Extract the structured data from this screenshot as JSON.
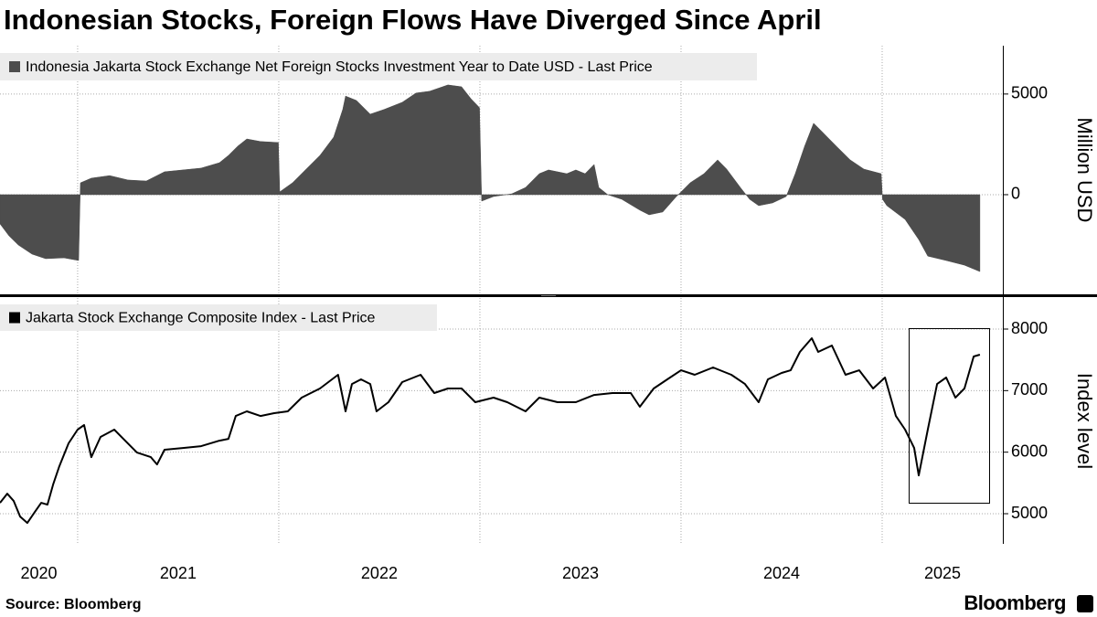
{
  "title": "Indonesian Stocks, Foreign Flows Have Diverged Since April",
  "source": "Source: Bloomberg",
  "brand": "Bloomberg",
  "chart_data": [
    {
      "type": "area",
      "ylabel": "Million USD",
      "xlim": [
        2020.614,
        2025.6
      ],
      "ylim": [
        -4950,
        7400
      ],
      "yticks": [
        0,
        5000
      ],
      "grid": true,
      "x": [
        2020.614,
        2020.659,
        2020.705,
        2020.773,
        2020.841,
        2020.932,
        2021.005,
        2021.014,
        2021.068,
        2021.159,
        2021.25,
        2021.341,
        2021.432,
        2021.523,
        2021.614,
        2021.705,
        2021.75,
        2021.795,
        2021.841,
        2021.909,
        2021.998,
        2022.005,
        2022.068,
        2022.136,
        2022.205,
        2022.273,
        2022.318,
        2022.332,
        2022.386,
        2022.455,
        2022.523,
        2022.614,
        2022.682,
        2022.75,
        2022.841,
        2022.909,
        2022.955,
        2022.998,
        2023.009,
        2023.068,
        2023.159,
        2023.227,
        2023.295,
        2023.341,
        2023.432,
        2023.477,
        2023.523,
        2023.568,
        2023.591,
        2023.636,
        2023.705,
        2023.795,
        2023.841,
        2023.909,
        2023.977,
        2024.045,
        2024.114,
        2024.182,
        2024.227,
        2024.295,
        2024.341,
        2024.386,
        2024.455,
        2024.523,
        2024.568,
        2024.614,
        2024.659,
        2024.705,
        2024.773,
        2024.841,
        2024.909,
        2024.995,
        2025.002,
        2025.023,
        2025.114,
        2025.182,
        2025.227,
        2025.318,
        2025.409,
        2025.486
      ],
      "series": [
        {
          "name": "Indonesia Jakarta Stock Exchange Net Foreign Stocks Investment Year to Date USD - Last Price",
          "color": "#4d4d4d",
          "values": [
            -1450,
            -2050,
            -2500,
            -2950,
            -3180,
            -3140,
            -3270,
            590,
            820,
            950,
            730,
            680,
            1140,
            1230,
            1320,
            1590,
            1950,
            2400,
            2770,
            2640,
            2590,
            140,
            590,
            1270,
            1950,
            2860,
            4230,
            4900,
            4680,
            4000,
            4230,
            4590,
            5050,
            5140,
            5450,
            5360,
            4770,
            4320,
            -320,
            -90,
            45,
            360,
            1045,
            1230,
            1045,
            1230,
            1045,
            1500,
            360,
            0,
            -230,
            -770,
            -1000,
            -860,
            -90,
            590,
            1045,
            1730,
            1270,
            360,
            -230,
            -545,
            -410,
            -90,
            1045,
            2400,
            3550,
            3090,
            2400,
            1730,
            1270,
            1045,
            -230,
            -545,
            -1230,
            -2230,
            -3050,
            -3270,
            -3500,
            -3820
          ]
        }
      ]
    },
    {
      "type": "line",
      "ylabel": "Index level",
      "xlim": [
        2020.614,
        2025.6
      ],
      "xticks": [
        2020,
        2021,
        2022,
        2023,
        2024,
        2025
      ],
      "ylim": [
        4510,
        8505
      ],
      "yticks": [
        5000,
        6000,
        7000,
        8000
      ],
      "grid": true,
      "x": [
        2020.614,
        2020.65,
        2020.682,
        2020.714,
        2020.75,
        2020.787,
        2020.819,
        2020.85,
        2020.878,
        2020.909,
        2020.955,
        2021.0,
        2021.032,
        2021.068,
        2021.114,
        2021.182,
        2021.227,
        2021.295,
        2021.364,
        2021.395,
        2021.432,
        2021.523,
        2021.614,
        2021.705,
        2021.75,
        2021.786,
        2021.841,
        2021.909,
        2021.977,
        2022.045,
        2022.114,
        2022.205,
        2022.295,
        2022.332,
        2022.364,
        2022.409,
        2022.455,
        2022.486,
        2022.545,
        2022.614,
        2022.705,
        2022.773,
        2022.841,
        2022.909,
        2022.977,
        2023.068,
        2023.136,
        2023.227,
        2023.295,
        2023.386,
        2023.477,
        2023.568,
        2023.659,
        2023.75,
        2023.795,
        2023.864,
        2023.932,
        2024.0,
        2024.068,
        2024.159,
        2024.25,
        2024.318,
        2024.386,
        2024.432,
        2024.5,
        2024.545,
        2024.591,
        2024.65,
        2024.682,
        2024.75,
        2024.818,
        2024.886,
        2024.955,
        2025.014,
        2025.068,
        2025.114,
        2025.159,
        2025.182,
        2025.227,
        2025.273,
        2025.318,
        2025.364,
        2025.409,
        2025.455,
        2025.486
      ],
      "series": [
        {
          "name": "Jakarta Stock Exchange Composite Index - Last Price",
          "color": "#000000",
          "values": [
            5177,
            5325,
            5207,
            4954,
            4850,
            5028,
            5177,
            5147,
            5474,
            5771,
            6143,
            6366,
            6440,
            5920,
            6247,
            6366,
            6217,
            5994,
            5920,
            5801,
            6039,
            6068,
            6098,
            6187,
            6217,
            6588,
            6663,
            6588,
            6633,
            6663,
            6886,
            7034,
            7257,
            6663,
            7108,
            7183,
            7108,
            6663,
            6812,
            7138,
            7257,
            6960,
            7034,
            7034,
            6812,
            6886,
            6812,
            6663,
            6886,
            6812,
            6812,
            6930,
            6960,
            6960,
            6737,
            7034,
            7183,
            7331,
            7257,
            7376,
            7257,
            7108,
            6812,
            7183,
            7287,
            7331,
            7629,
            7851,
            7629,
            7733,
            7257,
            7331,
            7034,
            7213,
            6588,
            6366,
            6068,
            5623,
            6366,
            7108,
            7213,
            6886,
            7034,
            7554,
            7584
          ]
        }
      ]
    }
  ]
}
